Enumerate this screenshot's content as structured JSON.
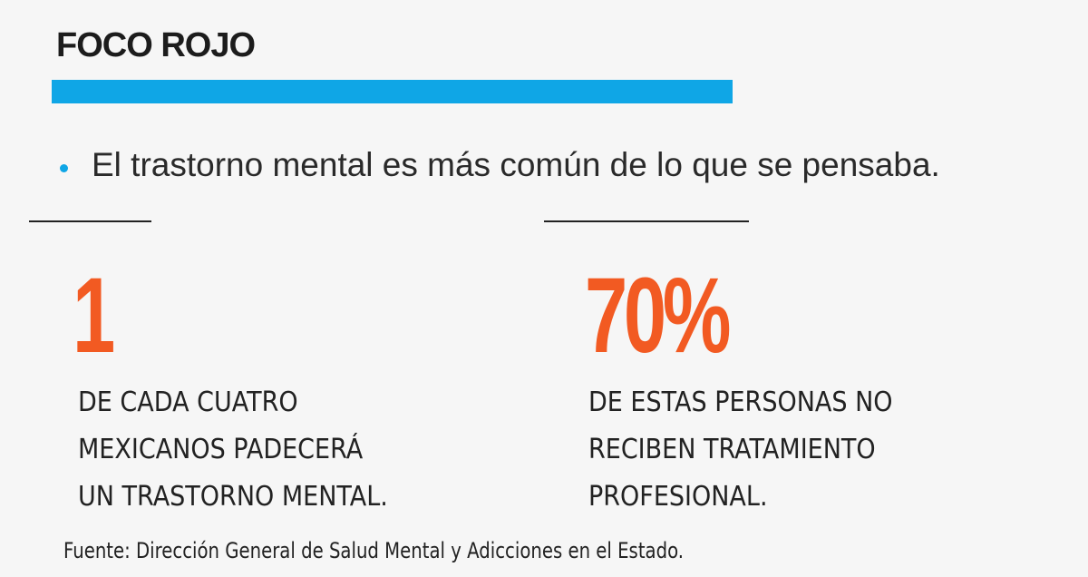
{
  "header": {
    "title": "FOCO ROJO"
  },
  "bullet": {
    "text": "El trastorno mental es más común de lo que se pensaba."
  },
  "stats": [
    {
      "number": "1",
      "lines": [
        "DE CADA CUATRO",
        "MEXICANOS PADECERÁ",
        "UN TRASTORNO MENTAL."
      ]
    },
    {
      "number": "70%",
      "lines": [
        "DE ESTAS PERSONAS NO",
        "RECIBEN TRATAMIENTO",
        "PROFESIONAL."
      ]
    }
  ],
  "source": {
    "text": "Fuente: Dirección General de Salud Mental y Adicciones en el Estado."
  },
  "colors": {
    "accent_blue": "#0fa6e6",
    "stat_orange": "#f25a22",
    "text_dark": "#222222",
    "background": "#f6f6f6"
  }
}
